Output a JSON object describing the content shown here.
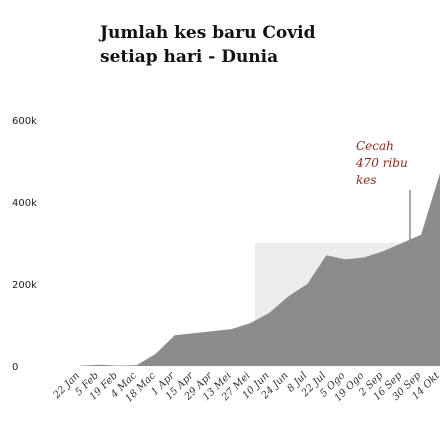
{
  "chart_data": {
    "type": "area",
    "title": [
      "Jumlah kes baru Covid",
      "setiap hari - Dunia"
    ],
    "categories": [
      "22 Jan",
      "5 Feb",
      "19 Feb",
      "4 Mac",
      "18 Mac",
      "1 Apr",
      "15 Apr",
      "29 Apr",
      "13 Mei",
      "27 Mei",
      "10 Jun",
      "24 Jun",
      "8 Jul",
      "22 Jul",
      "5 Ogo",
      "19 Ogo",
      "2 Sep",
      "16 Sep",
      "30 Sep",
      "14 Okt"
    ],
    "values": [
      1000,
      3000,
      1000,
      2000,
      30000,
      75000,
      80000,
      85000,
      90000,
      105000,
      130000,
      170000,
      200000,
      270000,
      260000,
      265000,
      280000,
      300000,
      320000,
      470000
    ],
    "color": "#8c8c8c",
    "ylim": [
      0,
      600000
    ],
    "yticks": [
      0,
      {
        "value": 200000,
        "label": "200k"
      },
      {
        "value": 400000,
        "label": "400k"
      },
      {
        "value": 600000,
        "label": "600k"
      }
    ],
    "annotation": [
      "Cecah",
      "470 ribu",
      "kes"
    ]
  }
}
